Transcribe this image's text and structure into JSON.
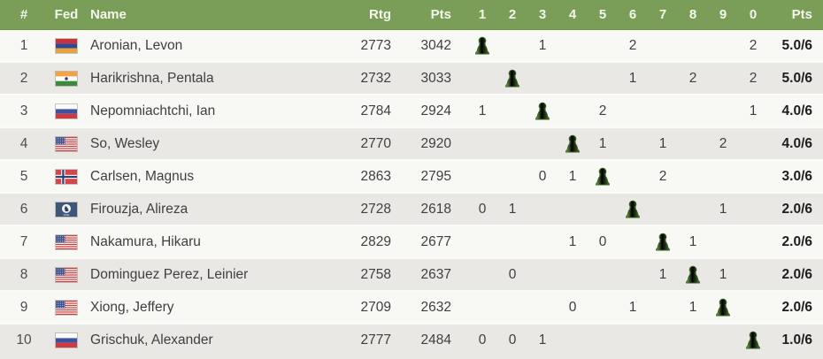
{
  "table": {
    "header": {
      "rank": "#",
      "fed": "Fed",
      "name": "Name",
      "rtg": "Rtg",
      "perf": "Pts",
      "rounds": [
        "1",
        "2",
        "3",
        "4",
        "5",
        "6",
        "7",
        "8",
        "9",
        "0"
      ],
      "pts": "Pts"
    },
    "player_marker": "P",
    "player_marker_icon": "pawn-icon",
    "players": [
      {
        "rank": "1",
        "fed": "ARM",
        "fed_name": "Armenia",
        "name": "Aronian, Levon",
        "rtg": "2773",
        "perf": "3042",
        "results": [
          "P",
          "",
          "1",
          "",
          "",
          "2",
          "",
          "",
          "",
          "2"
        ],
        "pts": "5.0/6"
      },
      {
        "rank": "2",
        "fed": "IND",
        "fed_name": "India",
        "name": "Harikrishna, Pentala",
        "rtg": "2732",
        "perf": "3033",
        "results": [
          "",
          "P",
          "",
          "",
          "",
          "1",
          "",
          "2",
          "",
          "2"
        ],
        "pts": "5.0/6"
      },
      {
        "rank": "3",
        "fed": "RUS",
        "fed_name": "Russia",
        "name": "Nepomniachtchi, Ian",
        "rtg": "2784",
        "perf": "2924",
        "results": [
          "1",
          "",
          "P",
          "",
          "2",
          "",
          "",
          "",
          "",
          "1"
        ],
        "pts": "4.0/6"
      },
      {
        "rank": "4",
        "fed": "USA",
        "fed_name": "United States",
        "name": "So, Wesley",
        "rtg": "2770",
        "perf": "2920",
        "results": [
          "",
          "",
          "",
          "P",
          "1",
          "",
          "1",
          "",
          "2",
          ""
        ],
        "pts": "4.0/6"
      },
      {
        "rank": "5",
        "fed": "NOR",
        "fed_name": "Norway",
        "name": "Carlsen, Magnus",
        "rtg": "2863",
        "perf": "2795",
        "results": [
          "",
          "",
          "0",
          "1",
          "P",
          "",
          "2",
          "",
          "",
          ""
        ],
        "pts": "3.0/6"
      },
      {
        "rank": "6",
        "fed": "FIDE",
        "fed_name": "FIDE",
        "name": "Firouzja, Alireza",
        "rtg": "2728",
        "perf": "2618",
        "results": [
          "0",
          "1",
          "",
          "",
          "",
          "P",
          "",
          "",
          "1",
          ""
        ],
        "pts": "2.0/6"
      },
      {
        "rank": "7",
        "fed": "USA",
        "fed_name": "United States",
        "name": "Nakamura, Hikaru",
        "rtg": "2829",
        "perf": "2677",
        "results": [
          "",
          "",
          "",
          "1",
          "0",
          "",
          "P",
          "1",
          "",
          ""
        ],
        "pts": "2.0/6"
      },
      {
        "rank": "8",
        "fed": "USA",
        "fed_name": "United States",
        "name": "Dominguez Perez, Leinier",
        "rtg": "2758",
        "perf": "2637",
        "results": [
          "",
          "0",
          "",
          "",
          "",
          "",
          "1",
          "P",
          "1",
          ""
        ],
        "pts": "2.0/6"
      },
      {
        "rank": "9",
        "fed": "USA",
        "fed_name": "United States",
        "name": "Xiong, Jeffery",
        "rtg": "2709",
        "perf": "2632",
        "results": [
          "",
          "",
          "",
          "0",
          "",
          "1",
          "",
          "1",
          "P",
          ""
        ],
        "pts": "2.0/6"
      },
      {
        "rank": "10",
        "fed": "RUS",
        "fed_name": "Russia",
        "name": "Grischuk, Alexander",
        "rtg": "2777",
        "perf": "2484",
        "results": [
          "0",
          "0",
          "1",
          "",
          "",
          "",
          "",
          "",
          "",
          "P"
        ],
        "pts": "1.0/6"
      }
    ]
  },
  "colors": {
    "header_bg": "#7A9E58",
    "header_text": "#F3F7EC",
    "row_odd": "#F8F8F5",
    "row_even": "#E9E8E4",
    "row_separator": "#FBFBF9",
    "pawn_green": "#5F9140",
    "text": "#3F3F3F",
    "points_text": "#1E1E1E"
  }
}
